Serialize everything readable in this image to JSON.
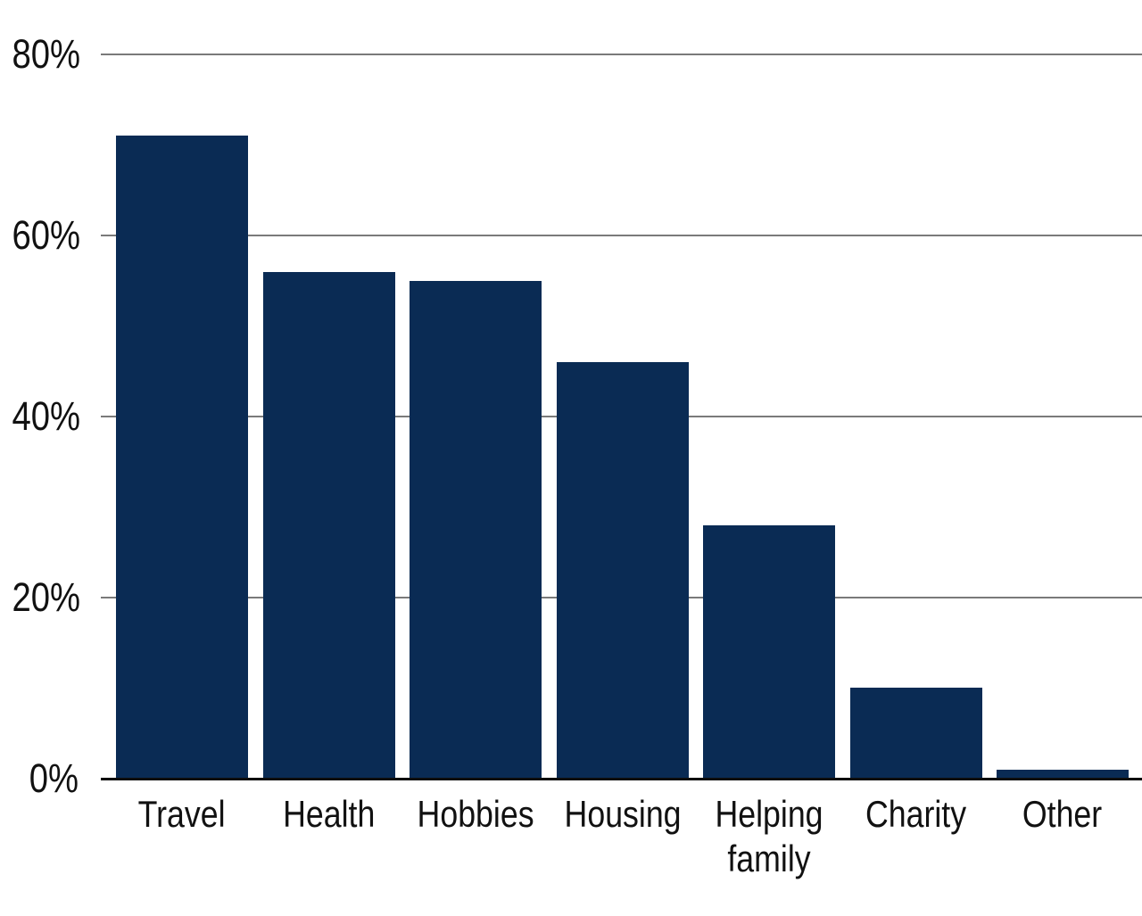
{
  "chart_data": {
    "type": "bar",
    "title": "",
    "xlabel": "",
    "ylabel": "",
    "categories": [
      "Travel",
      "Health",
      "Hobbies",
      "Housing",
      "Helping family",
      "Charity",
      "Other"
    ],
    "values": [
      71,
      56,
      55,
      46,
      28,
      10,
      1
    ],
    "ylim": [
      0,
      80
    ],
    "yticks": [
      0,
      20,
      40,
      60,
      80
    ],
    "ytick_labels": [
      "0%",
      "20%",
      "40%",
      "60%",
      "80%"
    ],
    "grid": "horizontal-gridlines-on",
    "legend": "none",
    "colors": {
      "bar": "#0a2b54",
      "gridline": "#7a7a7a",
      "axis_line": "#0d0d0d",
      "label_text": "#111111",
      "background": "#ffffff"
    }
  }
}
